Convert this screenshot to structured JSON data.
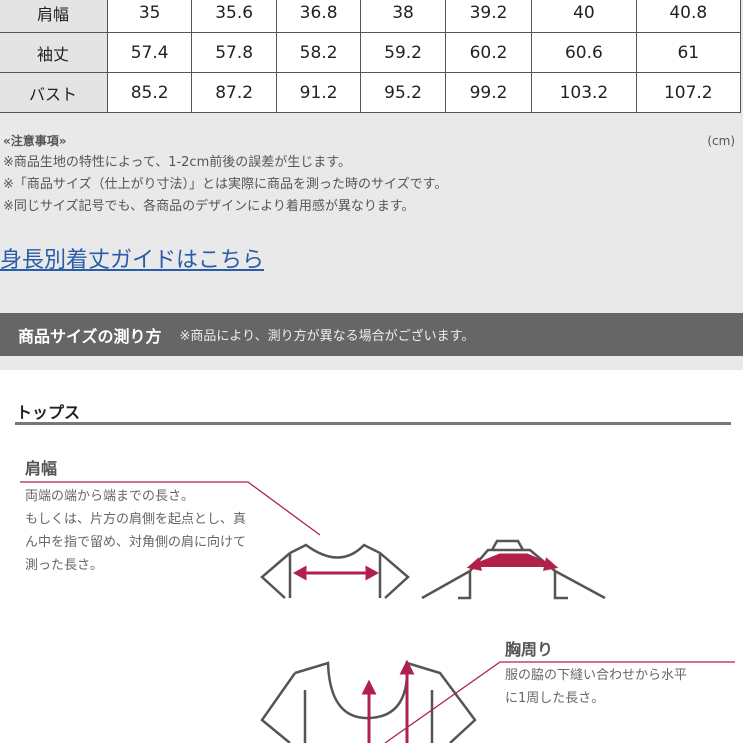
{
  "table": {
    "rows": [
      {
        "label": "肩幅",
        "values": [
          "35",
          "35.6",
          "36.8",
          "38",
          "39.2",
          "40",
          "40.8"
        ]
      },
      {
        "label": "袖丈",
        "values": [
          "57.4",
          "57.8",
          "58.2",
          "59.2",
          "60.2",
          "60.6",
          "61"
        ]
      },
      {
        "label": "バスト",
        "values": [
          "85.2",
          "87.2",
          "91.2",
          "95.2",
          "99.2",
          "103.2",
          "107.2"
        ]
      }
    ]
  },
  "notes": {
    "title": "«注意事項»",
    "unit": "(cm)",
    "items": [
      "※商品生地の特性によって、1-2cm前後の誤差が生じます。",
      "※「商品サイズ（仕上がり寸法）」とは実際に商品を測った時のサイズです。",
      "※同じサイズ記号でも、各商品のデザインにより着用感が異なります。"
    ]
  },
  "link": "身長別着丈ガイドはこちら",
  "section": {
    "title": "商品サイズの測り方",
    "subtitle": "※商品により、測り方が異なる場合がございます。"
  },
  "tops": "トップス",
  "shoulder": {
    "label": "肩幅",
    "lines": [
      "両端の端から端までの長さ。",
      "もしくは、片方の肩側を起点とし、真ん中を指で留め、対角側の肩に向けて測った長さ。"
    ]
  },
  "chest": {
    "label": "胸周り",
    "lines": [
      "服の脇の下縫い合わせから水平",
      "に1周した長さ。"
    ]
  },
  "colors": {
    "accent": "#b0204a",
    "bar": "#666666"
  }
}
